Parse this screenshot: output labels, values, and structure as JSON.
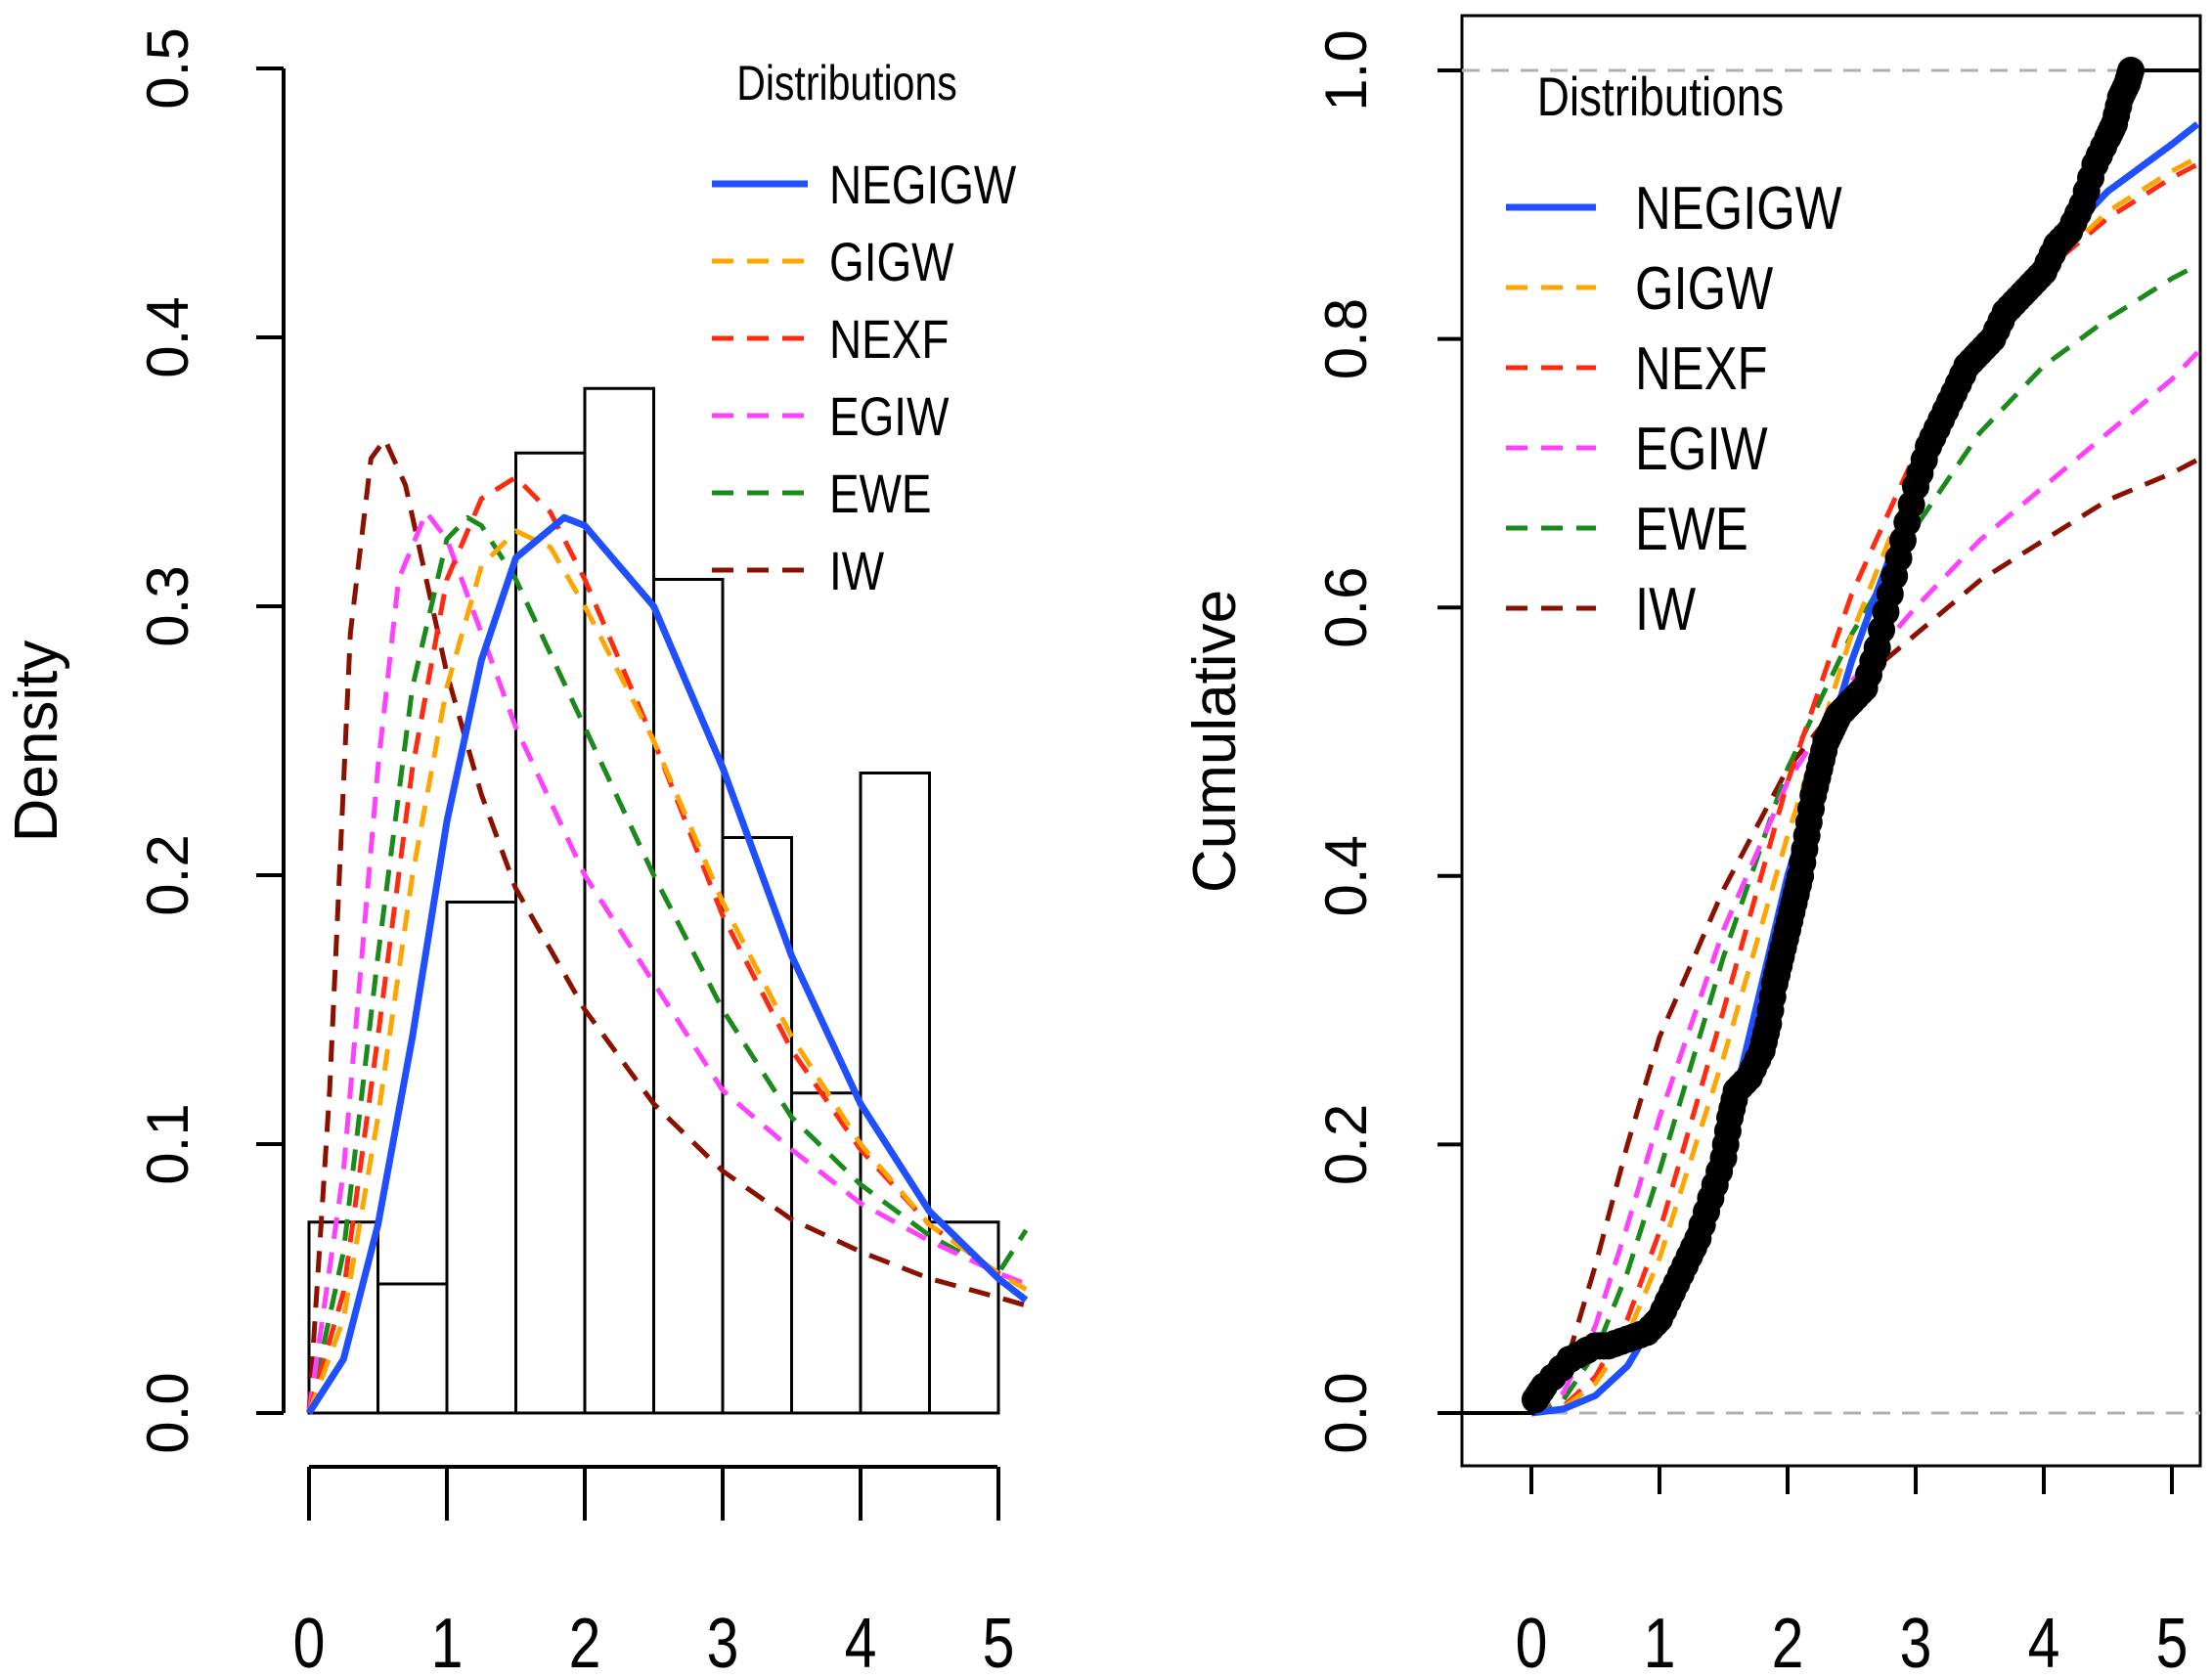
{
  "chart_data": [
    {
      "type": "histogram",
      "ylabel": "Density",
      "xlabel": "",
      "xlim": [
        0,
        5
      ],
      "ylim": [
        0,
        0.5
      ],
      "x_ticks": [
        "0",
        "1",
        "2",
        "3",
        "4",
        "5"
      ],
      "y_ticks": [
        "0.0",
        "0.1",
        "0.2",
        "0.3",
        "0.4",
        "0.5"
      ],
      "bins": [
        {
          "from": 0.0,
          "to": 0.5,
          "value": 0.071
        },
        {
          "from": 0.5,
          "to": 1.0,
          "value": 0.048
        },
        {
          "from": 1.0,
          "to": 1.5,
          "value": 0.19
        },
        {
          "from": 1.5,
          "to": 2.0,
          "value": 0.357
        },
        {
          "from": 2.0,
          "to": 2.5,
          "value": 0.381
        },
        {
          "from": 2.5,
          "to": 3.0,
          "value": 0.31
        },
        {
          "from": 3.0,
          "to": 3.5,
          "value": 0.214
        },
        {
          "from": 3.5,
          "to": 4.0,
          "value": 0.119
        },
        {
          "from": 4.0,
          "to": 4.5,
          "value": 0.238
        },
        {
          "from": 4.5,
          "to": 5.0,
          "value": 0.071
        }
      ],
      "legend_title": "Distributions",
      "series": [
        {
          "name": "NEGIGW",
          "color": "#1f4fff",
          "style": "solid",
          "x": [
            0,
            0.25,
            0.5,
            0.75,
            1.0,
            1.25,
            1.5,
            1.85,
            2.0,
            2.5,
            3.0,
            3.5,
            4.0,
            4.5,
            5.0,
            5.2
          ],
          "y": [
            0,
            0.02,
            0.07,
            0.14,
            0.22,
            0.28,
            0.318,
            0.333,
            0.33,
            0.3,
            0.24,
            0.17,
            0.115,
            0.075,
            0.05,
            0.042
          ]
        },
        {
          "name": "GIGW",
          "color": "#ffa500",
          "style": "dashed",
          "x": [
            0,
            0.25,
            0.5,
            0.75,
            1.0,
            1.25,
            1.5,
            1.75,
            2.0,
            2.5,
            3.0,
            3.5,
            4.0,
            4.5,
            5.0,
            5.2
          ],
          "y": [
            0,
            0.035,
            0.11,
            0.2,
            0.27,
            0.315,
            0.328,
            0.322,
            0.3,
            0.25,
            0.19,
            0.14,
            0.1,
            0.07,
            0.052,
            0.046
          ]
        },
        {
          "name": "NEXF",
          "color": "#ff2a10",
          "style": "dashed",
          "x": [
            0,
            0.25,
            0.5,
            0.75,
            1.0,
            1.25,
            1.5,
            1.75,
            2.0,
            2.5,
            3.0,
            3.5,
            4.0,
            4.5,
            5.0,
            5.2
          ],
          "y": [
            0,
            0.045,
            0.14,
            0.24,
            0.31,
            0.34,
            0.348,
            0.335,
            0.31,
            0.25,
            0.185,
            0.135,
            0.098,
            0.07,
            0.052,
            0.046
          ]
        },
        {
          "name": "EGIW",
          "color": "#ff40ff",
          "style": "dashed",
          "x": [
            0,
            0.25,
            0.5,
            0.65,
            0.85,
            1.0,
            1.25,
            1.5,
            2.0,
            2.5,
            3.0,
            3.5,
            4.0,
            4.5,
            5.0,
            5.2
          ],
          "y": [
            0,
            0.09,
            0.24,
            0.31,
            0.335,
            0.325,
            0.29,
            0.255,
            0.2,
            0.16,
            0.12,
            0.098,
            0.078,
            0.064,
            0.052,
            0.048
          ]
        },
        {
          "name": "EWE",
          "color": "#1a8a1a",
          "style": "dashed",
          "x": [
            0,
            0.25,
            0.5,
            0.75,
            1.0,
            1.15,
            1.25,
            1.5,
            2.0,
            2.5,
            3.0,
            3.5,
            4.0,
            4.5,
            5.0,
            5.2
          ],
          "y": [
            0,
            0.06,
            0.17,
            0.27,
            0.325,
            0.333,
            0.33,
            0.31,
            0.255,
            0.2,
            0.15,
            0.11,
            0.085,
            0.066,
            0.052,
            0.068
          ]
        },
        {
          "name": "IW",
          "color": "#8b1000",
          "style": "dashed",
          "x": [
            0,
            0.15,
            0.3,
            0.45,
            0.55,
            0.7,
            0.85,
            1.0,
            1.25,
            1.5,
            2.0,
            2.5,
            3.0,
            3.5,
            4.0,
            4.5,
            5.0,
            5.2
          ],
          "y": [
            0,
            0.12,
            0.29,
            0.355,
            0.362,
            0.345,
            0.31,
            0.275,
            0.23,
            0.195,
            0.15,
            0.115,
            0.09,
            0.072,
            0.06,
            0.05,
            0.043,
            0.04
          ]
        }
      ]
    },
    {
      "type": "line",
      "ylabel": "Cumulative",
      "xlabel": "",
      "xlim": [
        0,
        5
      ],
      "ylim": [
        0,
        1
      ],
      "x_ticks": [
        "0",
        "1",
        "2",
        "3",
        "4",
        "5"
      ],
      "y_ticks": [
        "0.0",
        "0.2",
        "0.4",
        "0.6",
        "0.8",
        "1.0"
      ],
      "legend_title": "Distributions",
      "ecdf_points": {
        "x": [
          0.03,
          0.1,
          0.3,
          0.5,
          0.6,
          0.75,
          0.9,
          1.0,
          1.1,
          1.2,
          1.3,
          1.4,
          1.5,
          1.55,
          1.6,
          1.7,
          1.8,
          1.85,
          1.9,
          1.95,
          2.0,
          2.05,
          2.1,
          2.15,
          2.2,
          2.25,
          2.3,
          2.35,
          2.4,
          2.5,
          2.6,
          2.7,
          2.8,
          2.9,
          3.0,
          3.1,
          3.2,
          3.3,
          3.4,
          3.5,
          3.6,
          3.7,
          3.8,
          3.9,
          4.0,
          4.1,
          4.2,
          4.3,
          4.4,
          4.5,
          4.55,
          4.6,
          4.65,
          4.68
        ],
        "y": [
          0.01,
          0.02,
          0.04,
          0.05,
          0.05,
          0.055,
          0.06,
          0.07,
          0.09,
          0.11,
          0.13,
          0.16,
          0.19,
          0.22,
          0.24,
          0.25,
          0.27,
          0.29,
          0.32,
          0.34,
          0.36,
          0.38,
          0.4,
          0.43,
          0.46,
          0.48,
          0.5,
          0.51,
          0.52,
          0.53,
          0.54,
          0.57,
          0.61,
          0.65,
          0.69,
          0.72,
          0.74,
          0.76,
          0.78,
          0.79,
          0.8,
          0.82,
          0.83,
          0.84,
          0.85,
          0.87,
          0.88,
          0.9,
          0.93,
          0.95,
          0.96,
          0.98,
          0.99,
          1.0
        ]
      },
      "series": [
        {
          "name": "NEGIGW",
          "color": "#1f4fff",
          "style": "solid",
          "x": [
            0,
            0.25,
            0.5,
            0.75,
            1.0,
            1.5,
            2.0,
            2.5,
            3.0,
            3.5,
            4.0,
            4.5,
            5.0,
            5.2
          ],
          "y": [
            0,
            0.003,
            0.013,
            0.035,
            0.075,
            0.2,
            0.4,
            0.56,
            0.69,
            0.79,
            0.86,
            0.91,
            0.945,
            0.96
          ]
        },
        {
          "name": "GIGW",
          "color": "#ffa500",
          "style": "dashed",
          "x": [
            0,
            0.25,
            0.5,
            0.75,
            1.0,
            1.5,
            2.0,
            2.5,
            3.0,
            3.5,
            4.0,
            4.5,
            5.0,
            5.2
          ],
          "y": [
            0,
            0.004,
            0.022,
            0.058,
            0.115,
            0.265,
            0.43,
            0.58,
            0.7,
            0.785,
            0.85,
            0.895,
            0.925,
            0.935
          ]
        },
        {
          "name": "NEXF",
          "color": "#ff2a10",
          "style": "dashed",
          "x": [
            0,
            0.25,
            0.5,
            0.75,
            1.0,
            1.5,
            2.0,
            2.5,
            3.0,
            3.5,
            4.0,
            4.5,
            5.0,
            5.2
          ],
          "y": [
            0,
            0.005,
            0.027,
            0.07,
            0.135,
            0.3,
            0.47,
            0.61,
            0.715,
            0.79,
            0.85,
            0.89,
            0.92,
            0.93
          ]
        },
        {
          "name": "EGIW",
          "color": "#ff40ff",
          "style": "dashed",
          "x": [
            0,
            0.25,
            0.5,
            0.75,
            1.0,
            1.5,
            2.0,
            2.5,
            3.0,
            3.5,
            4.0,
            4.5,
            5.0,
            5.2
          ],
          "y": [
            0,
            0.015,
            0.065,
            0.14,
            0.22,
            0.36,
            0.47,
            0.545,
            0.6,
            0.65,
            0.69,
            0.73,
            0.77,
            0.79
          ]
        },
        {
          "name": "EWE",
          "color": "#1a8a1a",
          "style": "dashed",
          "x": [
            0,
            0.25,
            0.5,
            0.75,
            1.0,
            1.5,
            2.0,
            2.5,
            3.0,
            3.5,
            4.0,
            4.5,
            5.0,
            5.2
          ],
          "y": [
            0,
            0.01,
            0.045,
            0.105,
            0.18,
            0.34,
            0.48,
            0.58,
            0.66,
            0.73,
            0.78,
            0.815,
            0.845,
            0.855
          ]
        },
        {
          "name": "IW",
          "color": "#8b1000",
          "style": "dashed",
          "x": [
            0,
            0.1,
            0.25,
            0.5,
            0.75,
            1.0,
            1.5,
            2.0,
            2.5,
            3.0,
            3.5,
            4.0,
            4.5,
            5.0,
            5.2
          ],
          "y": [
            0,
            0.005,
            0.03,
            0.11,
            0.2,
            0.28,
            0.39,
            0.48,
            0.54,
            0.58,
            0.62,
            0.65,
            0.68,
            0.7,
            0.71
          ]
        }
      ]
    }
  ]
}
